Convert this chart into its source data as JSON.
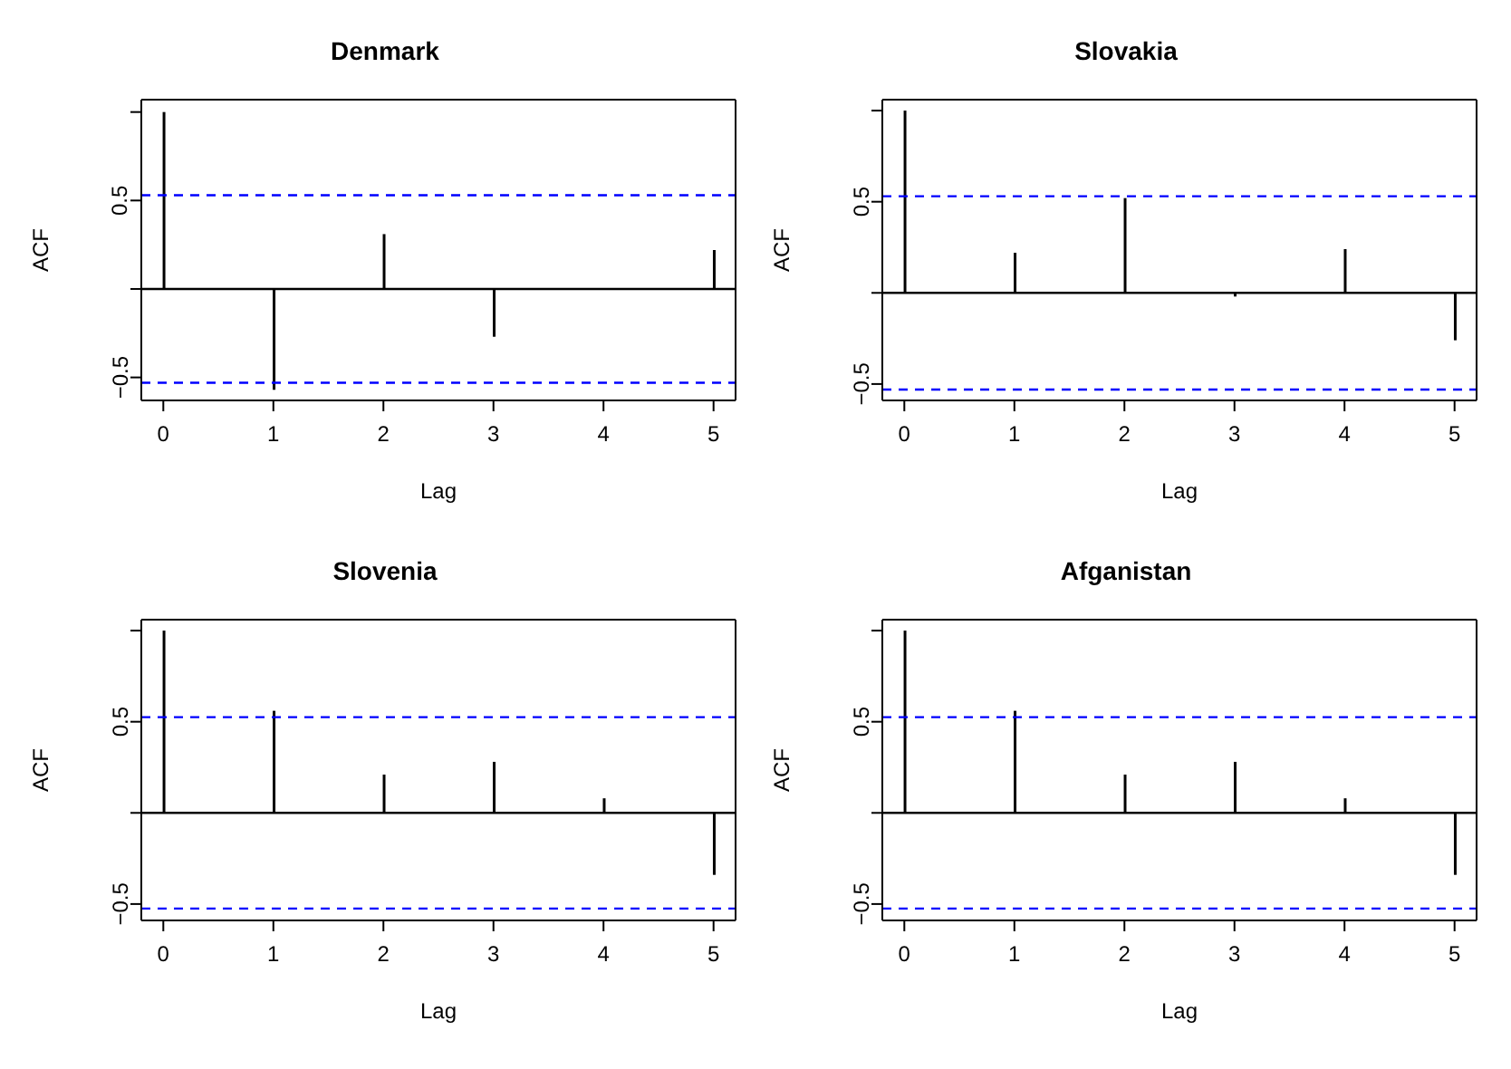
{
  "chart_data": [
    {
      "type": "bar",
      "title": "Denmark",
      "xlabel": "Lag",
      "ylabel": "ACF",
      "x": [
        0,
        1,
        2,
        3,
        4,
        5
      ],
      "series": [
        {
          "color": "#000000",
          "values": [
            1,
            -0.57,
            0.31,
            -0.27,
            0,
            0.22
          ]
        }
      ],
      "xlim": [
        -0.2,
        5.2
      ],
      "xticks": [
        0,
        1,
        2,
        3,
        4,
        5
      ],
      "ylim": [
        -0.63,
        1.07
      ],
      "yticks": [
        {
          "value": -0.5,
          "label": "−0.5"
        },
        {
          "value": 0,
          "label": null
        },
        {
          "value": 0.5,
          "label": "0.5"
        },
        {
          "value": 1,
          "label": null
        }
      ],
      "ref_lines": [
        {
          "axis": "y",
          "value": 0,
          "color": "#000000",
          "line_style": "solid"
        },
        {
          "axis": "y",
          "value": 0.53,
          "color": "#0000ff",
          "line_style": "dashed"
        },
        {
          "axis": "y",
          "value": -0.53,
          "color": "#0000ff",
          "line_style": "dashed"
        }
      ]
    },
    {
      "type": "bar",
      "title": "Slovakia",
      "xlabel": "Lag",
      "ylabel": "ACF",
      "x": [
        0,
        1,
        2,
        3,
        4,
        5
      ],
      "series": [
        {
          "color": "#000000",
          "values": [
            1,
            0.22,
            0.52,
            -0.02,
            0.24,
            -0.26
          ]
        }
      ],
      "xlim": [
        -0.2,
        5.2
      ],
      "xticks": [
        0,
        1,
        2,
        3,
        4,
        5
      ],
      "ylim": [
        -0.59,
        1.06
      ],
      "yticks": [
        {
          "value": -0.5,
          "label": "−0.5"
        },
        {
          "value": 0,
          "label": null
        },
        {
          "value": 0.5,
          "label": "0.5"
        },
        {
          "value": 1,
          "label": null
        }
      ],
      "ref_lines": [
        {
          "axis": "y",
          "value": 0,
          "color": "#000000",
          "line_style": "solid"
        },
        {
          "axis": "y",
          "value": 0.53,
          "color": "#0000ff",
          "line_style": "dashed"
        },
        {
          "axis": "y",
          "value": -0.53,
          "color": "#0000ff",
          "line_style": "dashed"
        }
      ]
    },
    {
      "type": "bar",
      "title": "Slovenia",
      "xlabel": "Lag",
      "ylabel": "ACF",
      "x": [
        0,
        1,
        2,
        3,
        4,
        5
      ],
      "series": [
        {
          "color": "#000000",
          "values": [
            1,
            0.56,
            0.21,
            0.28,
            0.08,
            -0.34
          ]
        }
      ],
      "xlim": [
        -0.2,
        5.2
      ],
      "xticks": [
        0,
        1,
        2,
        3,
        4,
        5
      ],
      "ylim": [
        -0.59,
        1.06
      ],
      "yticks": [
        {
          "value": -0.5,
          "label": "−0.5"
        },
        {
          "value": 0,
          "label": null
        },
        {
          "value": 0.5,
          "label": "0.5"
        },
        {
          "value": 1,
          "label": null
        }
      ],
      "ref_lines": [
        {
          "axis": "y",
          "value": 0,
          "color": "#000000",
          "line_style": "solid"
        },
        {
          "axis": "y",
          "value": 0.525,
          "color": "#0000ff",
          "line_style": "dashed"
        },
        {
          "axis": "y",
          "value": -0.525,
          "color": "#0000ff",
          "line_style": "dashed"
        }
      ]
    },
    {
      "type": "bar",
      "title": "Afganistan",
      "xlabel": "Lag",
      "ylabel": "ACF",
      "x": [
        0,
        1,
        2,
        3,
        4,
        5
      ],
      "series": [
        {
          "color": "#000000",
          "values": [
            1,
            0.56,
            0.21,
            0.28,
            0.08,
            -0.34
          ]
        }
      ],
      "xlim": [
        -0.2,
        5.2
      ],
      "xticks": [
        0,
        1,
        2,
        3,
        4,
        5
      ],
      "ylim": [
        -0.59,
        1.06
      ],
      "yticks": [
        {
          "value": -0.5,
          "label": "−0.5"
        },
        {
          "value": 0,
          "label": null
        },
        {
          "value": 0.5,
          "label": "0.5"
        },
        {
          "value": 1,
          "label": null
        }
      ],
      "ref_lines": [
        {
          "axis": "y",
          "value": 0,
          "color": "#000000",
          "line_style": "solid"
        },
        {
          "axis": "y",
          "value": 0.525,
          "color": "#0000ff",
          "line_style": "dashed"
        },
        {
          "axis": "y",
          "value": -0.525,
          "color": "#0000ff",
          "line_style": "dashed"
        }
      ]
    }
  ]
}
